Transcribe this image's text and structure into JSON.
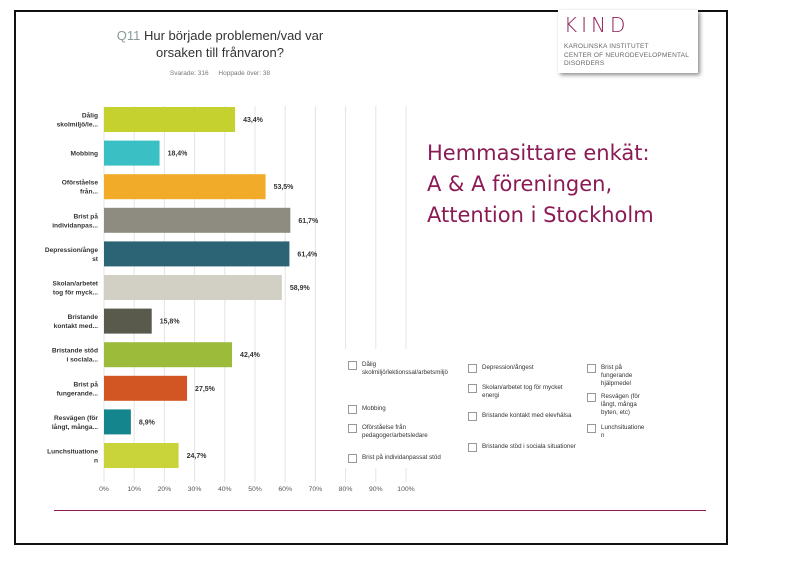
{
  "question": {
    "number": "Q11",
    "title": "Hur började problemen/vad var orsaken till frånvaron?",
    "answered": "Svarade: 316",
    "skipped": "Hoppade över: 38"
  },
  "logo": {
    "name": "KIND",
    "org_line1": "KAROLINSKA INSTITUTET",
    "org_line2": "CENTER OF NEURODEVELOPMENTAL",
    "org_line3": "DISORDERS"
  },
  "headline": {
    "line1": "Hemmasittare enkät:",
    "line2": "A & A föreningen,",
    "line3": "Attention i Stockholm"
  },
  "chart_data": {
    "type": "bar",
    "orientation": "horizontal",
    "categories": [
      [
        "Dålig",
        "skolmiljö/le..."
      ],
      [
        "Mobbing"
      ],
      [
        "Oförståelse",
        "från..."
      ],
      [
        "Brist på",
        "individanpas..."
      ],
      [
        "Depression/ånge",
        "st"
      ],
      [
        "Skolan/arbetet",
        "tog för myck..."
      ],
      [
        "Bristande",
        "kontakt med..."
      ],
      [
        "Bristande stöd",
        "i sociala..."
      ],
      [
        "Brist på",
        "fungerande..."
      ],
      [
        "Resvägen (för",
        "långt, många..."
      ],
      [
        "Lunchsituatione",
        "n"
      ]
    ],
    "values": [
      43.4,
      18.4,
      53.5,
      61.7,
      61.4,
      58.9,
      15.8,
      42.4,
      27.5,
      8.9,
      24.7
    ],
    "value_labels": [
      "43,4%",
      "18,4%",
      "53,5%",
      "61,7%",
      "61,4%",
      "58,9%",
      "15,8%",
      "42,4%",
      "27,5%",
      "8,9%",
      "24,7%"
    ],
    "colors": [
      "#c5d12e",
      "#3abfc4",
      "#f2ab28",
      "#8e8b80",
      "#2c6475",
      "#d2d0c4",
      "#5a5a4c",
      "#9dbb3a",
      "#d25524",
      "#14858c",
      "#c9d43a"
    ],
    "x_ticks": [
      "0%",
      "10%",
      "20%",
      "30%",
      "40%",
      "50%",
      "60%",
      "70%",
      "80%",
      "90%",
      "100%"
    ],
    "xlim": [
      0,
      100
    ],
    "grid": true
  },
  "legend": [
    "Dålig skolmiljö/lektionssal/arbetsmiljö",
    "Mobbing",
    "Oförståelse från pedagoger/arbetsledare",
    "Brist på individanpassat stöd",
    "Depression/ångest",
    "Skolan/arbetet tog för mycket energi",
    "Bristande kontakt med elevhälsa",
    "Bristande stöd i sociala situationer",
    "Brist på fungerande hjälpmedel",
    "Resvägen (för långt, många byten, etc)",
    "Lunchsituationen"
  ]
}
